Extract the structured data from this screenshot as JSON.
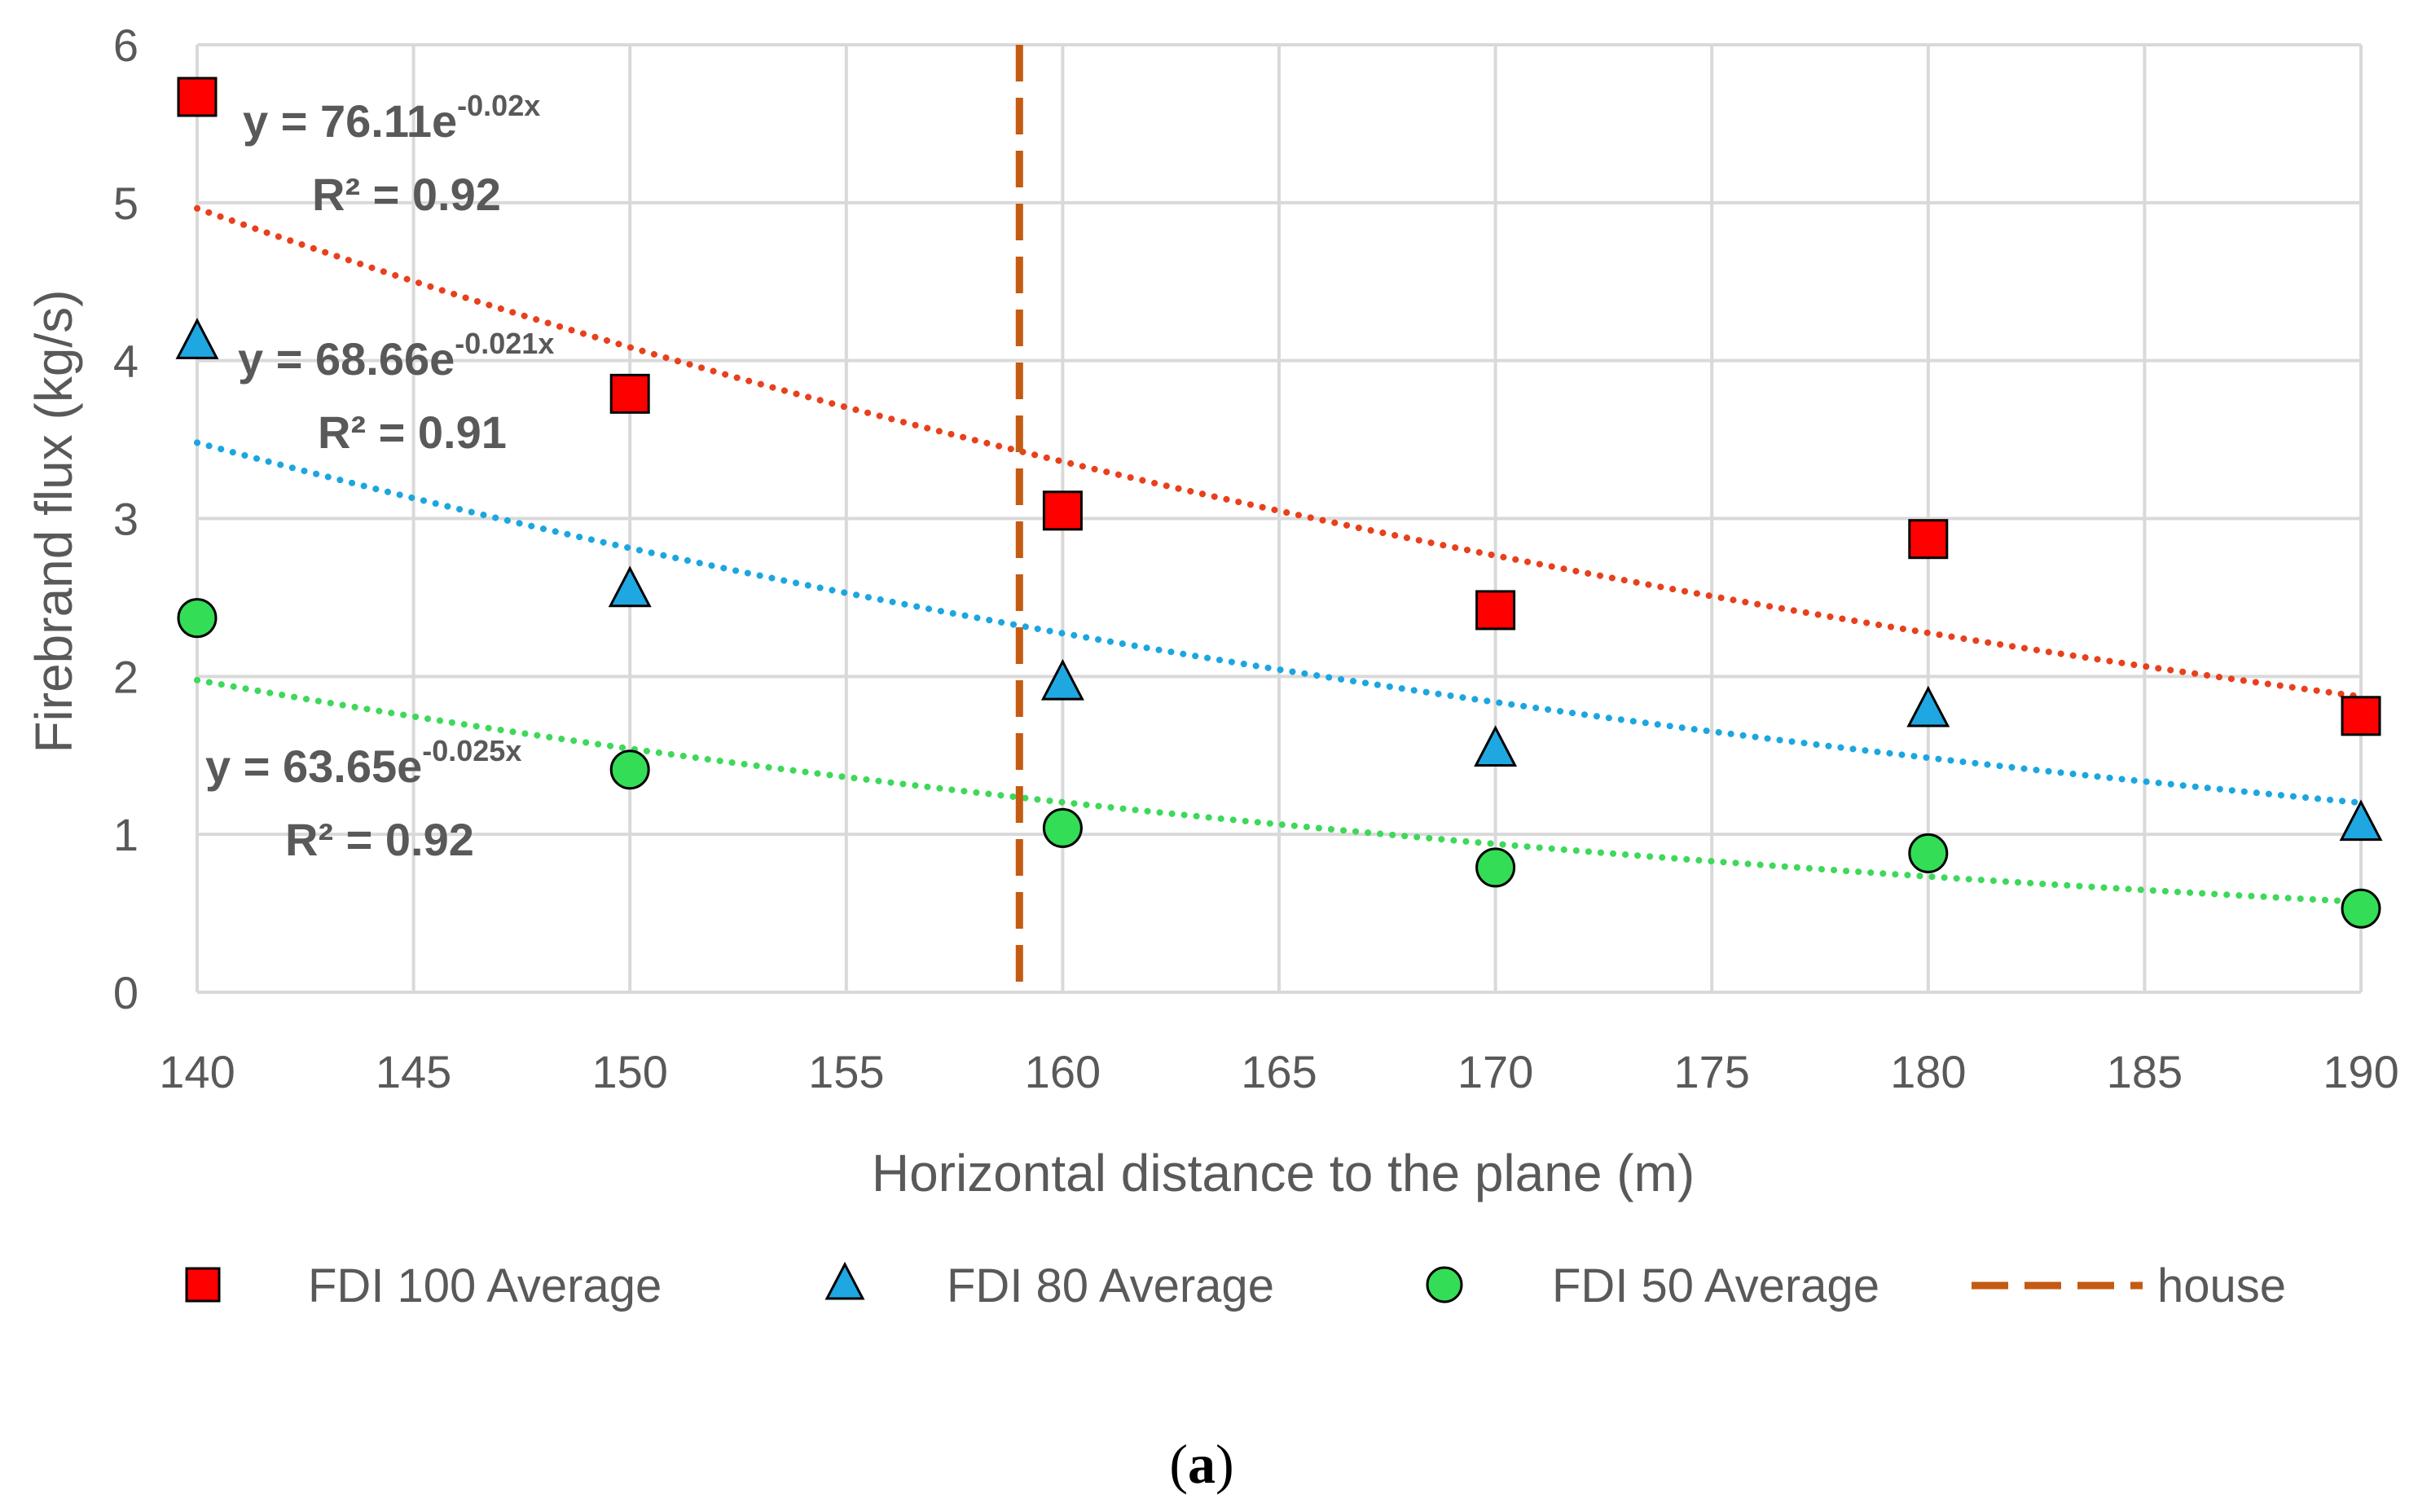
{
  "chart_data": {
    "type": "scatter",
    "title": "",
    "xlabel": "Horizontal distance to the plane (m)",
    "ylabel": "Firebrand flux (kg/s)",
    "xlim": [
      140,
      190
    ],
    "ylim": [
      0,
      6
    ],
    "xticks": [
      "140",
      "145",
      "150",
      "155",
      "160",
      "165",
      "170",
      "175",
      "180",
      "185",
      "190"
    ],
    "yticks": [
      "0",
      "1",
      "2",
      "3",
      "4",
      "5",
      "6"
    ],
    "grid": true,
    "legend_position": "bottom",
    "series": [
      {
        "name": "FDI 100 Average",
        "marker": "square",
        "color": "#ff0000",
        "trend_color": "#e8401c",
        "x": [
          140,
          150,
          160,
          170,
          180,
          190
        ],
        "y": [
          5.67,
          3.79,
          3.05,
          2.42,
          2.87,
          1.75
        ],
        "trendline": {
          "type": "exponential",
          "a": 76.11,
          "b": -0.0195,
          "equation": "y = 76.11e",
          "exponent": "-0.02x",
          "r2": "R² = 0.92"
        }
      },
      {
        "name": "FDI 80 Average",
        "marker": "triangle",
        "color": "#1fa7e1",
        "trend_color": "#1ca6e0",
        "x": [
          140,
          150,
          160,
          170,
          180,
          190
        ],
        "y": [
          4.12,
          2.55,
          1.96,
          1.54,
          1.79,
          1.07
        ],
        "trendline": {
          "type": "exponential",
          "a": 68.66,
          "b": -0.0213,
          "equation": "y = 68.66e",
          "exponent": "-0.021x",
          "r2": "R² = 0.91"
        }
      },
      {
        "name": "FDI 50 Average",
        "marker": "circle",
        "color": "#33dd55",
        "trend_color": "#3ed85a",
        "x": [
          140,
          150,
          160,
          170,
          180,
          190
        ],
        "y": [
          2.37,
          1.41,
          1.04,
          0.79,
          0.88,
          0.53
        ],
        "trendline": {
          "type": "exponential",
          "a": 63.65,
          "b": -0.0248,
          "equation": "y = 63.65e",
          "exponent": "-0.025x",
          "r2": "R² = 0.92"
        }
      }
    ],
    "vertical_line": {
      "name": "house",
      "x": 159,
      "color": "#c55a11",
      "style": "dashed"
    }
  },
  "caption": {
    "open": "(",
    "letter": "a",
    "close": ")"
  }
}
